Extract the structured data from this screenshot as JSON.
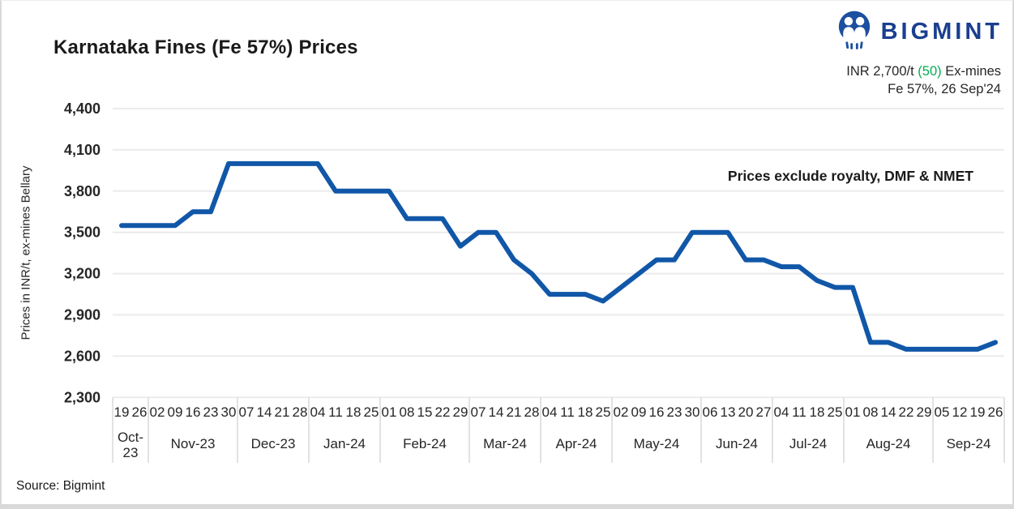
{
  "header": {
    "title": "Karnataka Fines (Fe 57%) Prices",
    "logo": {
      "icon": "bigmint-people-icon",
      "text": "BIGMINT"
    },
    "price_summary": {
      "current": "INR 2,700/t",
      "change": "(50)",
      "terms": "Ex-mines",
      "spec_date": "Fe 57%, 26 Sep'24"
    }
  },
  "footer": {
    "source": "Source: Bigmint"
  },
  "colors": {
    "line": "#1157a8",
    "brand_navy": "#1b3e8f",
    "change_green": "#00b050",
    "gridline": "#ebebeb",
    "table_border": "#d9d9d9",
    "text": "#262626"
  },
  "chart_data": {
    "type": "line",
    "title": "Karnataka Fines (Fe 57%) Prices",
    "ylabel": "Prices in INR/t, ex-mines Bellary",
    "xlabel": "",
    "ylim": [
      2300,
      4400
    ],
    "yticks": [
      "4,400",
      "4,100",
      "3,800",
      "3,500",
      "3,200",
      "2,900",
      "2,600",
      "2,300"
    ],
    "ytick_values": [
      4400,
      4100,
      3800,
      3500,
      3200,
      2900,
      2600,
      2300
    ],
    "grid": "horizontal",
    "legend": "none",
    "annotation": "Prices exclude royalty, DMF & NMET",
    "series_name": "Karnataka Fines (Fe 57%) ex-mines Bellary price",
    "months": [
      {
        "label": "Oct-23",
        "lines": [
          "Oct-",
          "23"
        ],
        "days": [
          "19",
          "26"
        ]
      },
      {
        "label": "Nov-23",
        "days": [
          "02",
          "09",
          "16",
          "23",
          "30"
        ]
      },
      {
        "label": "Dec-23",
        "days": [
          "07",
          "14",
          "21",
          "28"
        ]
      },
      {
        "label": "Jan-24",
        "days": [
          "04",
          "11",
          "18",
          "25"
        ]
      },
      {
        "label": "Feb-24",
        "days": [
          "01",
          "08",
          "15",
          "22",
          "29"
        ]
      },
      {
        "label": "Mar-24",
        "days": [
          "07",
          "14",
          "21",
          "28"
        ]
      },
      {
        "label": "Apr-24",
        "days": [
          "04",
          "11",
          "18",
          "25"
        ]
      },
      {
        "label": "May-24",
        "days": [
          "02",
          "09",
          "16",
          "23",
          "30"
        ]
      },
      {
        "label": "Jun-24",
        "days": [
          "06",
          "13",
          "20",
          "27"
        ]
      },
      {
        "label": "Jul-24",
        "days": [
          "04",
          "11",
          "18",
          "25"
        ]
      },
      {
        "label": "Aug-24",
        "days": [
          "01",
          "08",
          "14",
          "22",
          "29"
        ]
      },
      {
        "label": "Sep-24",
        "days": [
          "05",
          "12",
          "19",
          "26"
        ]
      }
    ],
    "values": [
      3550,
      3550,
      3550,
      3550,
      3650,
      3650,
      4000,
      4000,
      4000,
      4000,
      4000,
      4000,
      3800,
      3800,
      3800,
      3800,
      3600,
      3600,
      3600,
      3400,
      3500,
      3500,
      3300,
      3200,
      3050,
      3050,
      3050,
      3000,
      3100,
      3200,
      3300,
      3300,
      3500,
      3500,
      3500,
      3300,
      3300,
      3250,
      3250,
      3150,
      3100,
      3100,
      2700,
      2700,
      2650,
      2650,
      2650,
      2650,
      2650,
      2700
    ]
  }
}
